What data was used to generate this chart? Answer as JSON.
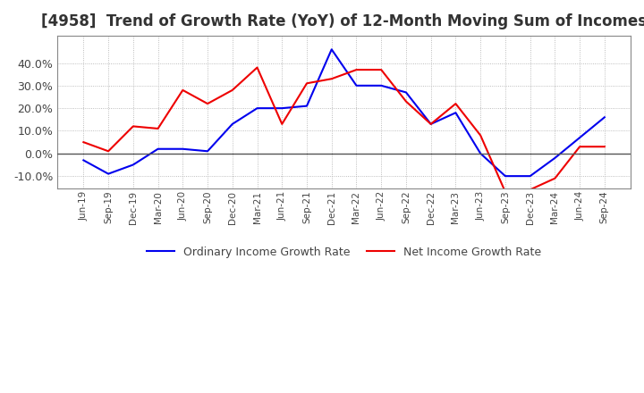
{
  "title": "[4958]  Trend of Growth Rate (YoY) of 12-Month Moving Sum of Incomes",
  "title_fontsize": 12,
  "ylim": [
    -0.155,
    0.52
  ],
  "yticks": [
    -0.1,
    0.0,
    0.1,
    0.2,
    0.3,
    0.4
  ],
  "background_color": "#ffffff",
  "grid_color": "#aaaaaa",
  "zero_line_color": "#555555",
  "border_color": "#888888",
  "ordinary_color": "#0000ee",
  "net_color": "#ee0000",
  "legend_labels": [
    "Ordinary Income Growth Rate",
    "Net Income Growth Rate"
  ],
  "x_labels": [
    "Jun-19",
    "Sep-19",
    "Dec-19",
    "Mar-20",
    "Jun-20",
    "Sep-20",
    "Dec-20",
    "Mar-21",
    "Jun-21",
    "Sep-21",
    "Dec-21",
    "Mar-22",
    "Jun-22",
    "Sep-22",
    "Dec-22",
    "Mar-23",
    "Jun-23",
    "Sep-23",
    "Dec-23",
    "Mar-24",
    "Jun-24",
    "Sep-24"
  ],
  "ordinary_income": [
    -0.03,
    -0.09,
    -0.05,
    0.02,
    0.02,
    0.01,
    0.13,
    0.2,
    0.2,
    0.21,
    0.46,
    0.3,
    0.3,
    0.27,
    0.13,
    0.18,
    0.0,
    -0.1,
    -0.1,
    -0.02,
    0.07,
    0.16
  ],
  "net_income": [
    0.05,
    0.01,
    0.12,
    0.11,
    0.28,
    0.22,
    0.28,
    0.38,
    0.13,
    0.31,
    0.33,
    0.37,
    0.37,
    0.23,
    0.13,
    0.22,
    0.08,
    -0.17,
    -0.16,
    -0.11,
    0.03,
    0.03
  ]
}
